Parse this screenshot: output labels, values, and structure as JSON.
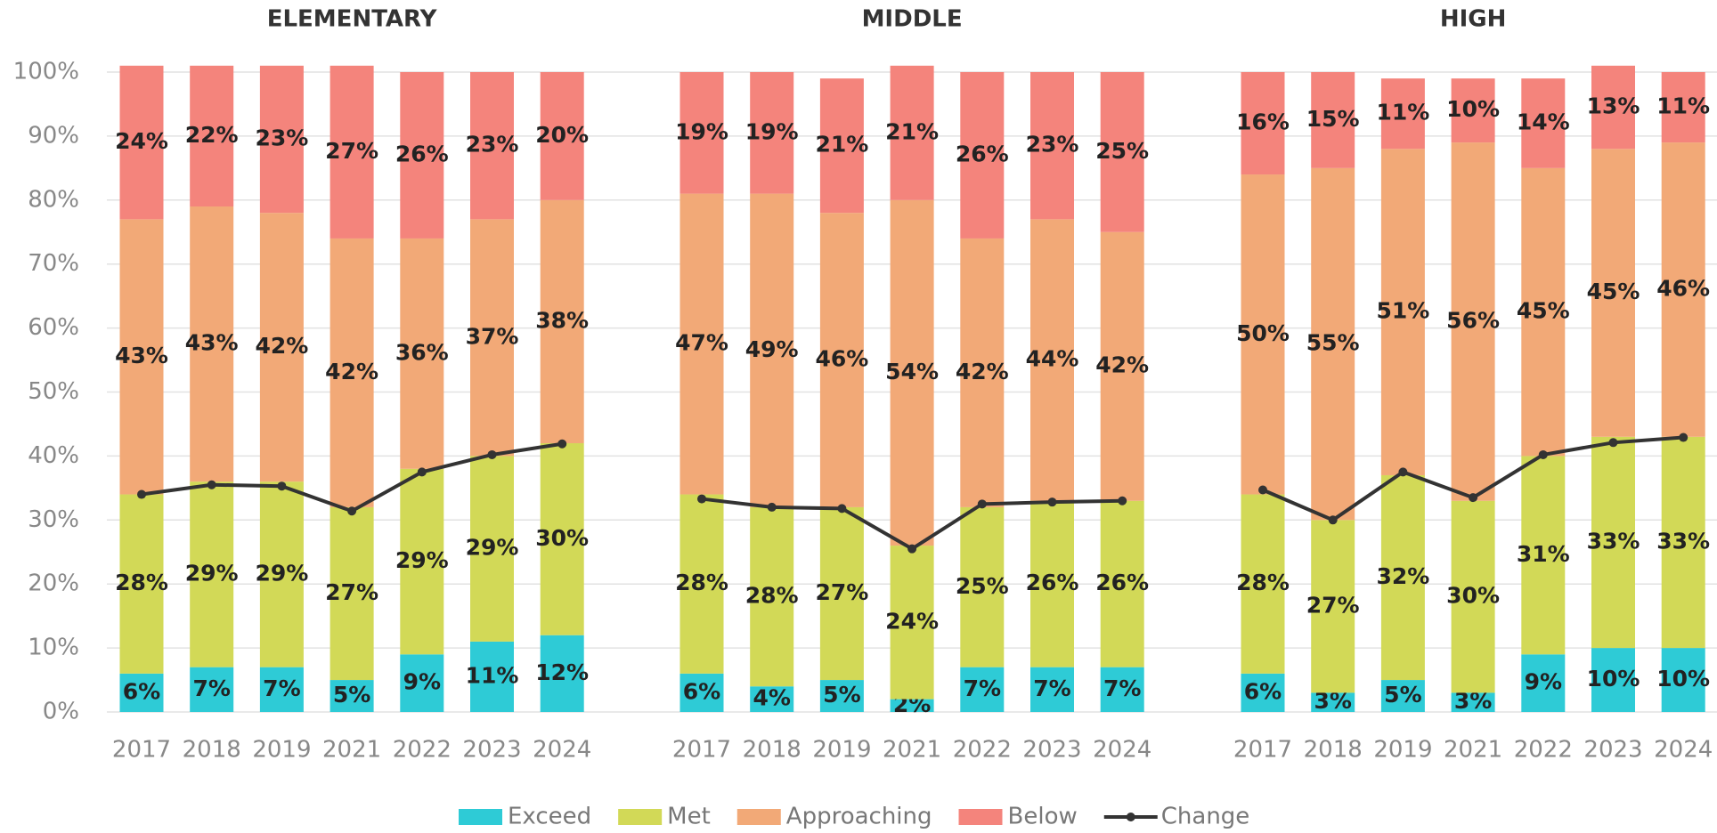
{
  "chart_data": [
    {
      "type": "bar",
      "stacked": true,
      "title": "ELEMENTARY",
      "categories": [
        "2017",
        "2018",
        "2019",
        "2021",
        "2022",
        "2023",
        "2024"
      ],
      "ylim": [
        0,
        100
      ],
      "yticks": [
        {
          "value": 0,
          "label": "0%"
        },
        {
          "value": 10,
          "label": "10%"
        },
        {
          "value": 20,
          "label": "20%"
        },
        {
          "value": 30,
          "label": "30%"
        },
        {
          "value": 40,
          "label": "40%"
        },
        {
          "value": 50,
          "label": "50%"
        },
        {
          "value": 60,
          "label": "60%"
        },
        {
          "value": 70,
          "label": "70%"
        },
        {
          "value": 80,
          "label": "80%"
        },
        {
          "value": 90,
          "label": "90%"
        },
        {
          "value": 100,
          "label": "100%"
        }
      ],
      "grid": true,
      "legend": "bottom",
      "series": [
        {
          "name": "Exceed",
          "color": "#2ecbd6",
          "values": [
            6,
            7,
            7,
            5,
            9,
            11,
            12
          ],
          "value_labels": [
            "6%",
            "7%",
            "7%",
            "5%",
            "9%",
            "11%",
            "12%"
          ]
        },
        {
          "name": "Met",
          "color": "#d2d957",
          "values": [
            28,
            29,
            29,
            27,
            29,
            29,
            30
          ],
          "value_labels": [
            "28%",
            "29%",
            "29%",
            "27%",
            "29%",
            "29%",
            "30%"
          ]
        },
        {
          "name": "Approaching",
          "color": "#f2a977",
          "values": [
            43,
            43,
            42,
            42,
            36,
            37,
            38
          ],
          "value_labels": [
            "43%",
            "43%",
            "42%",
            "42%",
            "36%",
            "37%",
            "38%"
          ]
        },
        {
          "name": "Below",
          "color": "#f4847c",
          "values": [
            24,
            22,
            23,
            27,
            26,
            23,
            20
          ],
          "value_labels": [
            "24%",
            "22%",
            "23%",
            "27%",
            "26%",
            "23%",
            "20%"
          ]
        },
        {
          "name": "Change",
          "type": "line",
          "color": "#333333",
          "values": [
            34,
            35.5,
            35.3,
            31.4,
            37.5,
            40.2,
            41.9
          ]
        }
      ]
    },
    {
      "type": "bar",
      "stacked": true,
      "title": "MIDDLE",
      "categories": [
        "2017",
        "2018",
        "2019",
        "2021",
        "2022",
        "2023",
        "2024"
      ],
      "ylim": [
        0,
        100
      ],
      "series": [
        {
          "name": "Exceed",
          "color": "#2ecbd6",
          "values": [
            6,
            4,
            5,
            2,
            7,
            7,
            7
          ],
          "value_labels": [
            "6%",
            "4%",
            "5%",
            "2%",
            "7%",
            "7%",
            "7%"
          ]
        },
        {
          "name": "Met",
          "color": "#d2d957",
          "values": [
            28,
            28,
            27,
            24,
            25,
            26,
            26
          ],
          "value_labels": [
            "28%",
            "28%",
            "27%",
            "24%",
            "25%",
            "26%",
            "26%"
          ]
        },
        {
          "name": "Approaching",
          "color": "#f2a977",
          "values": [
            47,
            49,
            46,
            54,
            42,
            44,
            42
          ],
          "value_labels": [
            "47%",
            "49%",
            "46%",
            "54%",
            "42%",
            "44%",
            "42%"
          ]
        },
        {
          "name": "Below",
          "color": "#f4847c",
          "values": [
            19,
            19,
            21,
            21,
            26,
            23,
            25
          ],
          "value_labels": [
            "19%",
            "19%",
            "21%",
            "21%",
            "26%",
            "23%",
            "25%"
          ]
        },
        {
          "name": "Change",
          "type": "line",
          "color": "#333333",
          "values": [
            33.3,
            32,
            31.8,
            25.5,
            32.5,
            32.8,
            33
          ]
        }
      ]
    },
    {
      "type": "bar",
      "stacked": true,
      "title": "HIGH",
      "categories": [
        "2017",
        "2018",
        "2019",
        "2021",
        "2022",
        "2023",
        "2024"
      ],
      "ylim": [
        0,
        100
      ],
      "series": [
        {
          "name": "Exceed",
          "color": "#2ecbd6",
          "values": [
            6,
            3,
            5,
            3,
            9,
            10,
            10
          ],
          "value_labels": [
            "6%",
            "3%",
            "5%",
            "3%",
            "9%",
            "10%",
            "10%"
          ]
        },
        {
          "name": "Met",
          "color": "#d2d957",
          "values": [
            28,
            27,
            32,
            30,
            31,
            33,
            33
          ],
          "value_labels": [
            "28%",
            "27%",
            "32%",
            "30%",
            "31%",
            "33%",
            "33%"
          ]
        },
        {
          "name": "Approaching",
          "color": "#f2a977",
          "values": [
            50,
            55,
            51,
            56,
            45,
            45,
            46
          ],
          "value_labels": [
            "50%",
            "55%",
            "51%",
            "56%",
            "45%",
            "45%",
            "46%"
          ]
        },
        {
          "name": "Below",
          "color": "#f4847c",
          "values": [
            16,
            15,
            11,
            10,
            14,
            13,
            11
          ],
          "value_labels": [
            "16%",
            "15%",
            "11%",
            "10%",
            "14%",
            "13%",
            "11%"
          ]
        },
        {
          "name": "Change",
          "type": "line",
          "color": "#333333",
          "values": [
            34.7,
            30,
            37.5,
            33.5,
            40.2,
            42.1,
            42.9
          ]
        }
      ]
    }
  ]
}
